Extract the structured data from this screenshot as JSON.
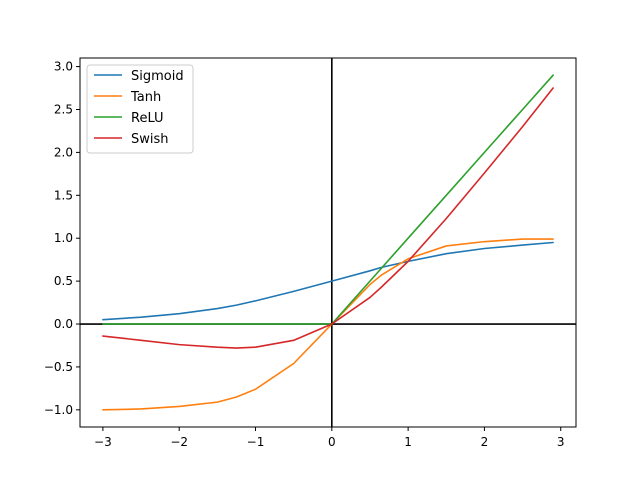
{
  "chart_data": {
    "type": "line",
    "title": "",
    "xlabel": "",
    "ylabel": "",
    "xlim": [
      -3.3,
      3.2
    ],
    "ylim": [
      -1.2,
      3.1
    ],
    "grid": false,
    "legend_position": "top-left",
    "x_ticks": [
      {
        "value": -3,
        "label": "−3"
      },
      {
        "value": -2,
        "label": "−2"
      },
      {
        "value": -1,
        "label": "−1"
      },
      {
        "value": 0,
        "label": "0"
      },
      {
        "value": 1,
        "label": "1"
      },
      {
        "value": 2,
        "label": "2"
      },
      {
        "value": 3,
        "label": "3"
      }
    ],
    "y_ticks": [
      {
        "value": -1.0,
        "label": "−1.0"
      },
      {
        "value": -0.5,
        "label": "−0.5"
      },
      {
        "value": 0.0,
        "label": "0.0"
      },
      {
        "value": 0.5,
        "label": "0.5"
      },
      {
        "value": 1.0,
        "label": "1.0"
      },
      {
        "value": 1.5,
        "label": "1.5"
      },
      {
        "value": 2.0,
        "label": "2.0"
      },
      {
        "value": 2.5,
        "label": "2.5"
      },
      {
        "value": 3.0,
        "label": "3.0"
      }
    ],
    "reference_lines": {
      "x_zero": 0,
      "y_zero": 0,
      "color": "#000000"
    },
    "x": [
      -3.0,
      -2.5,
      -2.0,
      -1.5,
      -1.25,
      -1.0,
      -0.5,
      0.0,
      0.5,
      0.65,
      1.0,
      1.5,
      2.0,
      2.5,
      2.9
    ],
    "series": [
      {
        "name": "Sigmoid",
        "color": "#1f77b4",
        "values": [
          0.05,
          0.08,
          0.12,
          0.18,
          0.22,
          0.27,
          0.38,
          0.5,
          0.62,
          0.66,
          0.73,
          0.82,
          0.88,
          0.92,
          0.95
        ]
      },
      {
        "name": "Tanh",
        "color": "#ff7f0e",
        "values": [
          -1.0,
          -0.99,
          -0.96,
          -0.91,
          -0.85,
          -0.76,
          -0.46,
          0.0,
          0.46,
          0.57,
          0.76,
          0.91,
          0.96,
          0.99,
          0.99
        ]
      },
      {
        "name": "ReLU",
        "color": "#2ca02c",
        "values": [
          0.0,
          0.0,
          0.0,
          0.0,
          0.0,
          0.0,
          0.0,
          0.0,
          0.5,
          0.65,
          1.0,
          1.5,
          2.0,
          2.5,
          2.9
        ]
      },
      {
        "name": "Swish",
        "color": "#d62728",
        "values": [
          -0.14,
          -0.19,
          -0.24,
          -0.27,
          -0.28,
          -0.27,
          -0.19,
          0.0,
          0.31,
          0.43,
          0.73,
          1.23,
          1.76,
          2.3,
          2.75
        ]
      }
    ]
  }
}
